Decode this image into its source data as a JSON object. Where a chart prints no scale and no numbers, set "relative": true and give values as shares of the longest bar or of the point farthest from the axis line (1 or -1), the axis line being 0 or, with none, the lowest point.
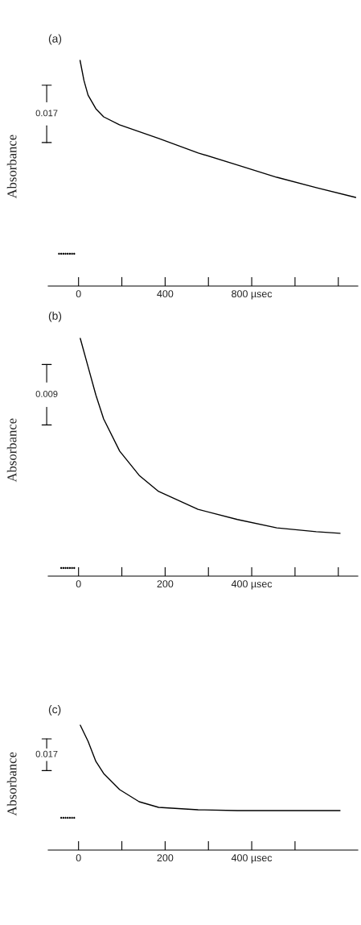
{
  "chart_data": [
    {
      "type": "line",
      "title": "(a)",
      "ylabel": "Absorbance",
      "relative": true,
      "annotations": [
        "0.017"
      ],
      "xlim": [
        -140,
        1290
      ],
      "xticks": [
        0,
        {
          "value": 200,
          "label": null
        },
        400,
        {
          "value": 600,
          "label": null
        },
        {
          "value": 800,
          "label": "800 µsec"
        },
        {
          "value": 1000,
          "label": null
        },
        {
          "value": 1200,
          "label": null
        }
      ],
      "tick_labels": "x",
      "grid": false,
      "legend": false,
      "series": [
        {
          "color": "#000000",
          "x": [
            7,
            25,
            44,
            80,
            116,
            189,
            371,
            553,
            735,
            916,
            1098,
            1280
          ],
          "values": [
            1.0,
            0.911,
            0.846,
            0.786,
            0.75,
            0.715,
            0.654,
            0.59,
            0.536,
            0.482,
            0.436,
            0.393
          ]
        },
        {
          "type": "scatter",
          "color": "#000000",
          "x": [
            -90,
            -80,
            -70,
            -60,
            -50,
            -40,
            -30,
            -20
          ],
          "values": [
            0.143,
            0.143,
            0.143,
            0.143,
            0.143,
            0.143,
            0.143,
            0.143
          ]
        }
      ]
    },
    {
      "type": "line",
      "title": "(b)",
      "ylabel": "Absorbance",
      "relative": true,
      "annotations": [
        "0.009"
      ],
      "xlim": [
        -70,
        645
      ],
      "xticks": [
        0,
        {
          "value": 100,
          "label": null
        },
        200,
        {
          "value": 300,
          "label": null
        },
        {
          "value": 400,
          "label": "400 µsec"
        },
        {
          "value": 500,
          "label": null
        },
        {
          "value": 600,
          "label": null
        }
      ],
      "tick_labels": "x",
      "grid": false,
      "legend": false,
      "series": [
        {
          "color": "#000000",
          "x": [
            4,
            22,
            40,
            58,
            95,
            140,
            185,
            276,
            367,
            458,
            549,
            604
          ],
          "values": [
            1.0,
            0.881,
            0.762,
            0.661,
            0.526,
            0.424,
            0.356,
            0.281,
            0.238,
            0.203,
            0.187,
            0.18
          ]
        },
        {
          "type": "scatter",
          "color": "#000000",
          "x": [
            -40,
            -35,
            -30,
            -25,
            -20,
            -15,
            -10
          ],
          "values": [
            0.034,
            0.034,
            0.034,
            0.034,
            0.034,
            0.034,
            0.034
          ]
        }
      ]
    },
    {
      "type": "line",
      "title": "(c)",
      "ylabel": "Absorbance",
      "relative": true,
      "annotations": [
        "0.017"
      ],
      "xlim": [
        -70,
        645
      ],
      "xticks": [
        0,
        {
          "value": 100,
          "label": null
        },
        200,
        {
          "value": 300,
          "label": null
        },
        {
          "value": 400,
          "label": "400 µsec"
        },
        {
          "value": 500,
          "label": null
        }
      ],
      "tick_labels": "x",
      "grid": false,
      "legend": false,
      "series": [
        {
          "color": "#000000",
          "x": [
            4,
            22,
            40,
            58,
            95,
            140,
            185,
            276,
            367,
            604
          ],
          "values": [
            1.0,
            0.871,
            0.71,
            0.613,
            0.484,
            0.387,
            0.342,
            0.323,
            0.316,
            0.316
          ]
        },
        {
          "type": "scatter",
          "color": "#000000",
          "x": [
            -40,
            -35,
            -30,
            -25,
            -20,
            -15,
            -10
          ],
          "values": [
            0.258,
            0.258,
            0.258,
            0.258,
            0.258,
            0.258,
            0.258
          ]
        }
      ]
    }
  ]
}
